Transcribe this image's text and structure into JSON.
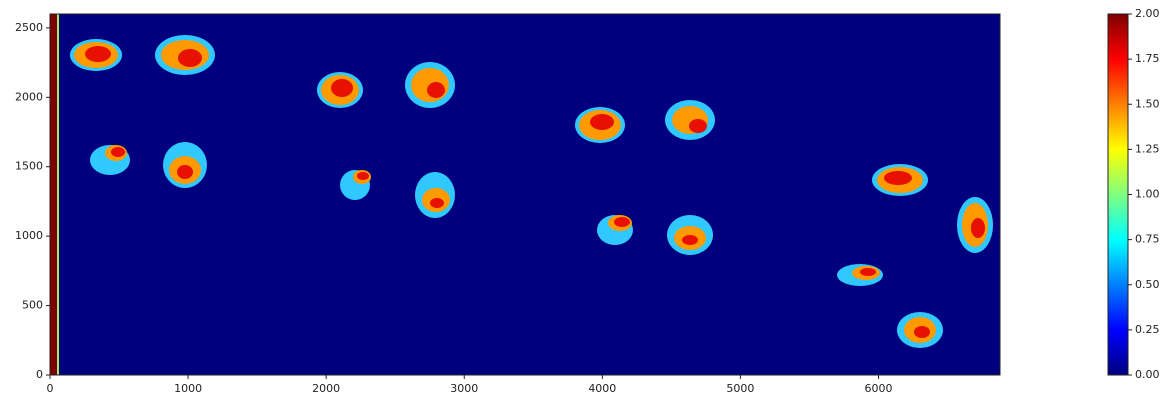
{
  "chart_data": {
    "type": "image",
    "cmap": "jet",
    "xlim": [
      0,
      6880
    ],
    "ylim": [
      2600,
      0
    ],
    "xticks": [
      0,
      1000,
      2000,
      3000,
      4000,
      5000,
      6000
    ],
    "yticks": [
      0,
      500,
      1000,
      1500,
      2000,
      2500
    ],
    "colorbar": {
      "lim": [
        0,
        2
      ],
      "ticks": [
        {
          "value": 0,
          "label": "0.00"
        },
        {
          "value": 0.25,
          "label": "0.25"
        },
        {
          "value": 0.5,
          "label": "0.50"
        },
        {
          "value": 0.75,
          "label": "0.75"
        },
        {
          "value": 1,
          "label": "1.00"
        },
        {
          "value": 1.25,
          "label": "1.25"
        },
        {
          "value": 1.5,
          "label": "1.50"
        },
        {
          "value": 1.75,
          "label": "1.75"
        },
        {
          "value": 2,
          "label": "2.00"
        }
      ]
    }
  }
}
